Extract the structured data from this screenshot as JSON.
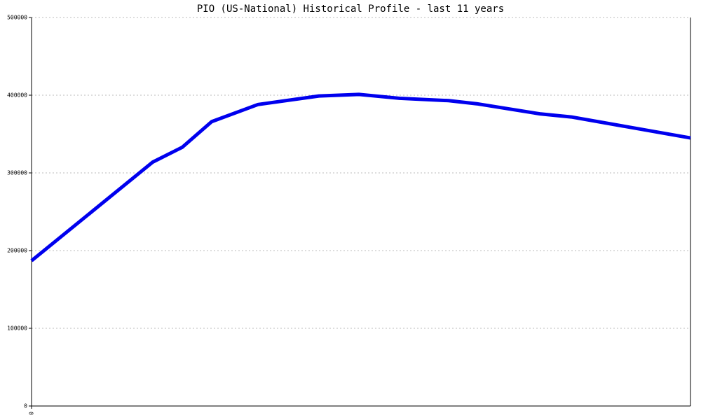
{
  "chart_data": {
    "type": "line",
    "title": "PIO (US-National) Historical Profile - last 11 years",
    "x": [
      0,
      173,
      215,
      257,
      323,
      410,
      467,
      525,
      595,
      635,
      725,
      770,
      940
    ],
    "series": [
      {
        "name": "PIO",
        "color": "#0000ee",
        "values": [
          187000,
          314000,
          333000,
          366000,
          388000,
          399000,
          401000,
          396000,
          393000,
          389000,
          376000,
          372000,
          345000
        ]
      }
    ],
    "xlim": [
      0,
      940
    ],
    "xticks": [
      0
    ],
    "ylim": [
      0,
      500000
    ],
    "yticks": [
      0,
      100000,
      200000,
      300000,
      400000,
      500000
    ],
    "grid": true
  }
}
